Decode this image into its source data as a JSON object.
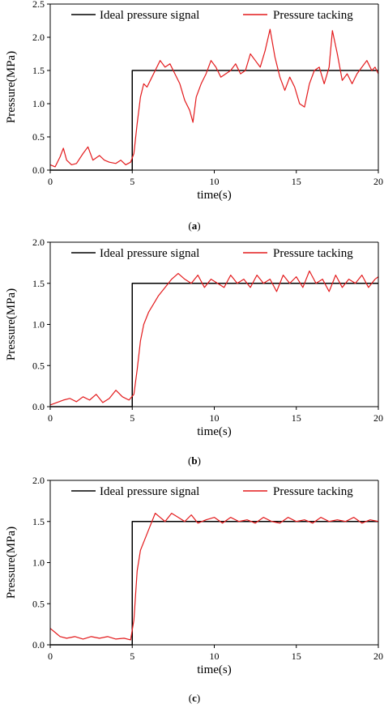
{
  "figure": {
    "legend": {
      "ideal": "Ideal pressure signal",
      "tracking": "Pressure tacking"
    },
    "xlabel": "time(s)",
    "ylabel": "Pressure(MPa)",
    "colors": {
      "ideal": "#000000",
      "tracking": "#e31a1c"
    }
  },
  "chart_data": [
    {
      "type": "line",
      "panel_label": "a",
      "xlabel": "time(s)",
      "ylabel": "Pressure(MPa)",
      "xlim": [
        0,
        20
      ],
      "ylim": [
        0,
        2.5
      ],
      "xticks": [
        0,
        5,
        10,
        15,
        20
      ],
      "yticks": [
        0.0,
        0.5,
        1.0,
        1.5,
        2.0,
        2.5
      ],
      "ytick_labels": [
        "0.0",
        "0.5",
        "1.0",
        "1.5",
        "2.0",
        "2.5"
      ],
      "xtick_labels": [
        "0",
        "5",
        "10",
        "15",
        "20"
      ],
      "legend_position": "top",
      "series": [
        {
          "name": "Ideal pressure signal",
          "color": "#000000",
          "x": [
            0,
            5,
            5,
            20
          ],
          "y": [
            0,
            0,
            1.5,
            1.5
          ]
        },
        {
          "name": "Pressure tacking",
          "color": "#e31a1c",
          "x": [
            0,
            0.3,
            0.6,
            0.8,
            1.0,
            1.3,
            1.6,
            2.0,
            2.3,
            2.6,
            3.0,
            3.3,
            3.6,
            4.0,
            4.3,
            4.6,
            4.9,
            5.1,
            5.3,
            5.5,
            5.7,
            5.9,
            6.1,
            6.4,
            6.7,
            7.0,
            7.3,
            7.6,
            7.9,
            8.2,
            8.5,
            8.7,
            8.9,
            9.2,
            9.5,
            9.8,
            10.1,
            10.4,
            10.7,
            11.0,
            11.3,
            11.6,
            11.9,
            12.2,
            12.5,
            12.8,
            13.1,
            13.4,
            13.7,
            14.0,
            14.3,
            14.6,
            14.9,
            15.2,
            15.5,
            15.8,
            16.1,
            16.4,
            16.7,
            17.0,
            17.2,
            17.5,
            17.8,
            18.1,
            18.4,
            18.7,
            19.0,
            19.3,
            19.6,
            19.8,
            20.0
          ],
          "y": [
            0.08,
            0.05,
            0.2,
            0.33,
            0.15,
            0.08,
            0.1,
            0.25,
            0.35,
            0.15,
            0.22,
            0.15,
            0.12,
            0.1,
            0.15,
            0.08,
            0.12,
            0.25,
            0.7,
            1.1,
            1.3,
            1.25,
            1.35,
            1.5,
            1.65,
            1.55,
            1.6,
            1.45,
            1.3,
            1.05,
            0.9,
            0.72,
            1.1,
            1.3,
            1.45,
            1.65,
            1.55,
            1.4,
            1.45,
            1.5,
            1.6,
            1.45,
            1.5,
            1.75,
            1.65,
            1.55,
            1.8,
            2.12,
            1.7,
            1.4,
            1.2,
            1.4,
            1.25,
            1.0,
            0.95,
            1.3,
            1.5,
            1.55,
            1.3,
            1.55,
            2.1,
            1.75,
            1.35,
            1.45,
            1.3,
            1.45,
            1.55,
            1.65,
            1.5,
            1.55,
            1.45
          ]
        }
      ]
    },
    {
      "type": "line",
      "panel_label": "b",
      "xlabel": "time(s)",
      "ylabel": "Pressure(MPa)",
      "xlim": [
        0,
        20
      ],
      "ylim": [
        0,
        2.0
      ],
      "xticks": [
        0,
        5,
        10,
        15,
        20
      ],
      "yticks": [
        0.0,
        0.5,
        1.0,
        1.5,
        2.0
      ],
      "ytick_labels": [
        "0.0",
        "0.5",
        "1.0",
        "1.5",
        "2.0"
      ],
      "xtick_labels": [
        "0",
        "5",
        "10",
        "15",
        "20"
      ],
      "legend_position": "top",
      "series": [
        {
          "name": "Ideal pressure signal",
          "color": "#000000",
          "x": [
            0,
            5,
            5,
            20
          ],
          "y": [
            0,
            0,
            1.5,
            1.5
          ]
        },
        {
          "name": "Pressure tacking",
          "color": "#e31a1c",
          "x": [
            0,
            0.4,
            0.8,
            1.2,
            1.6,
            2.0,
            2.4,
            2.8,
            3.2,
            3.6,
            4.0,
            4.4,
            4.8,
            5.1,
            5.3,
            5.5,
            5.7,
            6.0,
            6.3,
            6.6,
            7.0,
            7.4,
            7.8,
            8.2,
            8.6,
            9.0,
            9.4,
            9.8,
            10.2,
            10.6,
            11.0,
            11.4,
            11.8,
            12.2,
            12.6,
            13.0,
            13.4,
            13.8,
            14.2,
            14.6,
            15.0,
            15.4,
            15.8,
            16.2,
            16.6,
            17.0,
            17.4,
            17.8,
            18.2,
            18.6,
            19.0,
            19.4,
            19.8,
            20.0
          ],
          "y": [
            0.02,
            0.05,
            0.08,
            0.1,
            0.06,
            0.12,
            0.08,
            0.15,
            0.05,
            0.1,
            0.2,
            0.12,
            0.08,
            0.15,
            0.45,
            0.8,
            1.0,
            1.15,
            1.25,
            1.35,
            1.45,
            1.55,
            1.62,
            1.55,
            1.5,
            1.6,
            1.45,
            1.55,
            1.5,
            1.45,
            1.6,
            1.5,
            1.55,
            1.45,
            1.6,
            1.5,
            1.55,
            1.4,
            1.6,
            1.5,
            1.58,
            1.45,
            1.65,
            1.5,
            1.55,
            1.4,
            1.6,
            1.45,
            1.55,
            1.5,
            1.6,
            1.45,
            1.55,
            1.58
          ]
        }
      ]
    },
    {
      "type": "line",
      "panel_label": "c",
      "xlabel": "time(s)",
      "ylabel": "Pressure(MPa)",
      "xlim": [
        0,
        20
      ],
      "ylim": [
        0,
        2.0
      ],
      "xticks": [
        0,
        5,
        10,
        15,
        20
      ],
      "yticks": [
        0.0,
        0.5,
        1.0,
        1.5,
        2.0
      ],
      "ytick_labels": [
        "0.0",
        "0.5",
        "1.0",
        "1.5",
        "2.0"
      ],
      "xtick_labels": [
        "0",
        "5",
        "10",
        "15",
        "20"
      ],
      "legend_position": "top",
      "series": [
        {
          "name": "Ideal pressure signal",
          "color": "#000000",
          "x": [
            0,
            5,
            5,
            20
          ],
          "y": [
            0,
            0,
            1.5,
            1.5
          ]
        },
        {
          "name": "Pressure tacking",
          "color": "#e31a1c",
          "x": [
            0,
            0.3,
            0.6,
            1.0,
            1.5,
            2.0,
            2.5,
            3.0,
            3.5,
            4.0,
            4.5,
            4.9,
            5.1,
            5.3,
            5.5,
            5.8,
            6.1,
            6.4,
            6.7,
            7.0,
            7.4,
            7.8,
            8.2,
            8.6,
            9.0,
            9.5,
            10.0,
            10.5,
            11.0,
            11.5,
            12.0,
            12.5,
            13.0,
            13.5,
            14.0,
            14.5,
            15.0,
            15.5,
            16.0,
            16.5,
            17.0,
            17.5,
            18.0,
            18.5,
            19.0,
            19.5,
            20.0
          ],
          "y": [
            0.2,
            0.15,
            0.1,
            0.08,
            0.1,
            0.07,
            0.1,
            0.08,
            0.1,
            0.07,
            0.08,
            0.06,
            0.3,
            0.9,
            1.15,
            1.3,
            1.45,
            1.6,
            1.55,
            1.5,
            1.6,
            1.55,
            1.5,
            1.58,
            1.48,
            1.52,
            1.55,
            1.48,
            1.55,
            1.5,
            1.52,
            1.48,
            1.55,
            1.5,
            1.48,
            1.55,
            1.5,
            1.52,
            1.48,
            1.55,
            1.5,
            1.52,
            1.5,
            1.55,
            1.48,
            1.52,
            1.5
          ]
        }
      ]
    }
  ]
}
